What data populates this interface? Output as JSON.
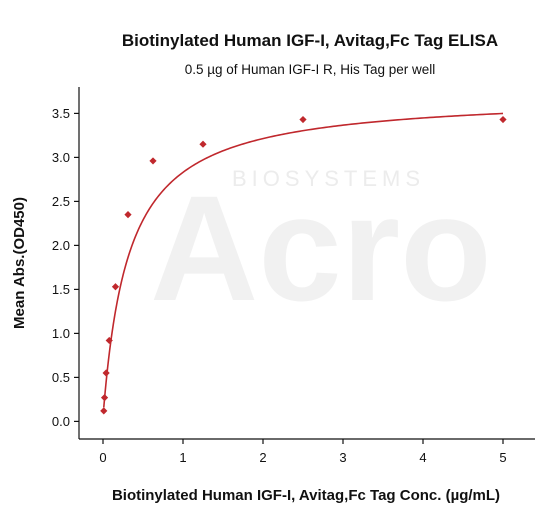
{
  "chart_data": {
    "type": "scatter",
    "title": "Biotinylated Human IGF-I, Avitag,Fc Tag ELISA",
    "subtitle": "0.5 µg of Human IGF-I R, His Tag per well",
    "xlabel": "Biotinylated Human IGF-I, Avitag,Fc Tag Conc. (µg/mL)",
    "ylabel": "Mean Abs.(OD450)",
    "xlim": [
      -0.3,
      5.4
    ],
    "ylim": [
      -0.2,
      3.8
    ],
    "x_ticks": [
      "0",
      "1",
      "2",
      "3",
      "4",
      "5"
    ],
    "y_ticks": [
      "0.0",
      "0.5",
      "1.0",
      "1.5",
      "2.0",
      "2.5",
      "3.0",
      "3.5"
    ],
    "grid": false,
    "watermark": {
      "brand": "Acro",
      "sub": "BIOSYSTEMS"
    },
    "colors": {
      "series": "#c0282d",
      "axis": "#111111"
    },
    "series": [
      {
        "x": [
          0.0098,
          0.0195,
          0.039,
          0.078,
          0.156,
          0.3125,
          0.625,
          1.25,
          2.5,
          5.0
        ],
        "y": [
          0.12,
          0.27,
          0.55,
          0.92,
          1.53,
          2.35,
          2.96,
          3.15,
          3.43,
          3.43
        ],
        "fit": "4PL"
      }
    ]
  }
}
